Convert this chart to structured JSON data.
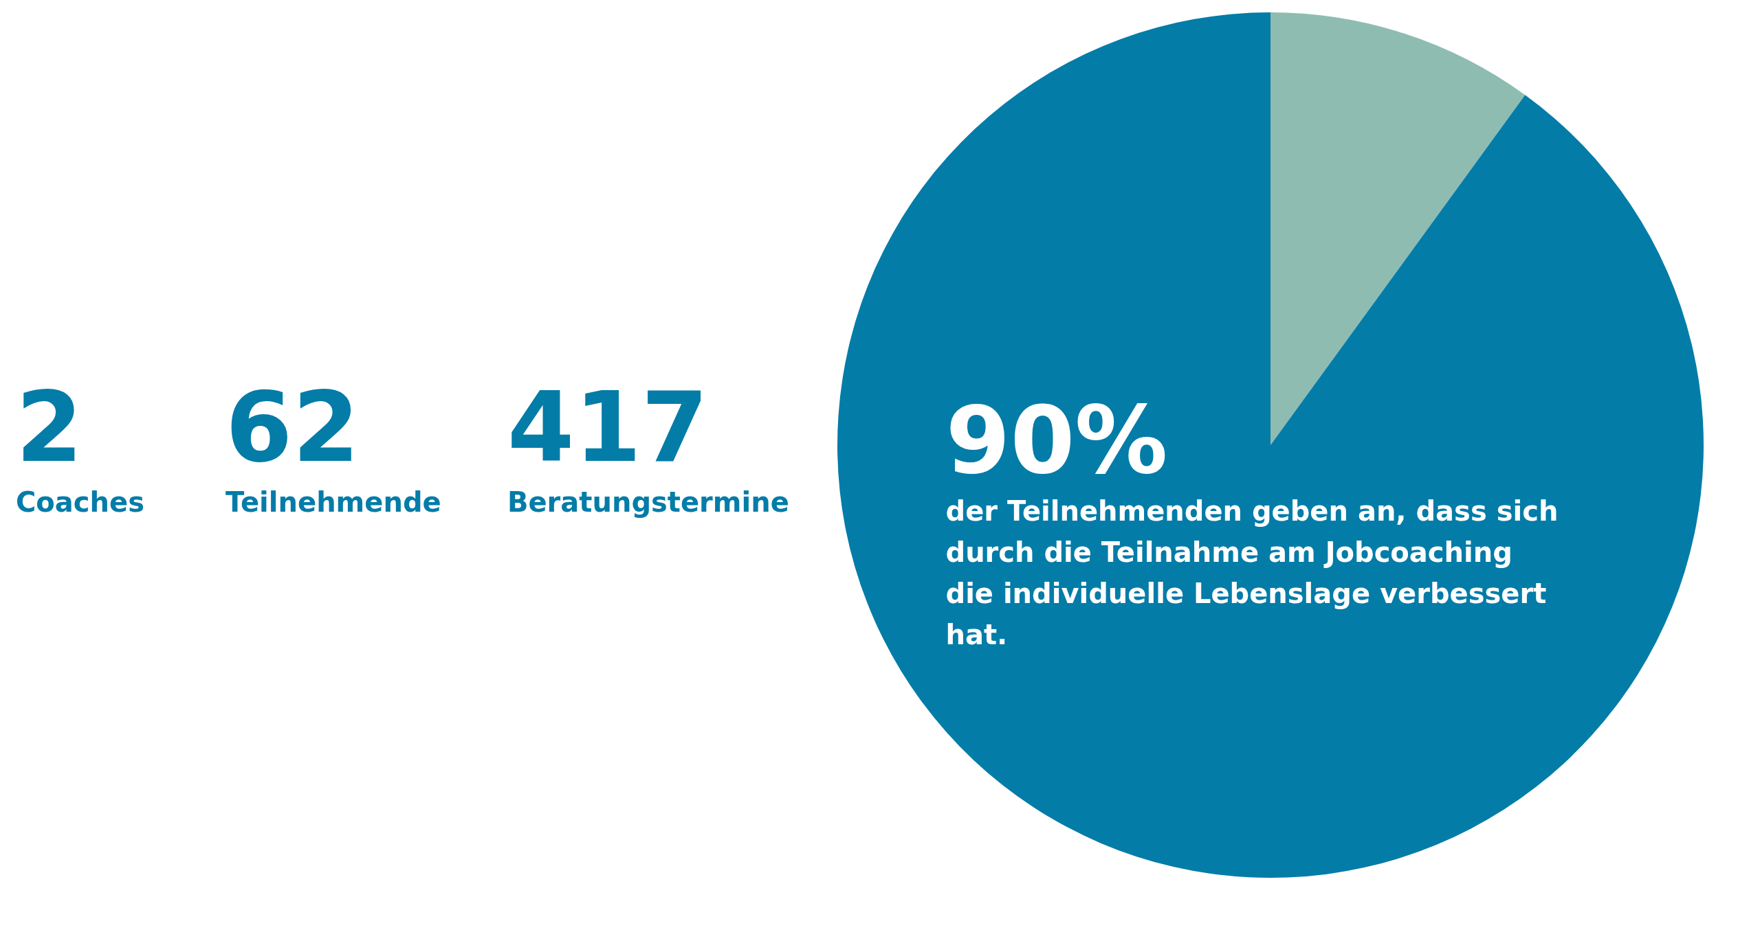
{
  "chart_data": [
    {
      "type": "other",
      "categories": [
        "Coaches",
        "Teilnehmende",
        "Beratungstermine"
      ],
      "value_labels": [
        "2",
        "62",
        "417"
      ],
      "color": "#037ca8"
    },
    {
      "type": "pie",
      "categories": [
        null,
        null
      ],
      "values": [
        10,
        90
      ],
      "colors": [
        "#8fbcb1",
        "#037ca8"
      ],
      "value_labels": [
        null,
        "90%"
      ],
      "annotations": [
        "der Teilnehmenden geben an, dass sich durch die Teilnahme am Jobcoaching die individuelle Lebenslage verbessert hat."
      ],
      "legend": false
    }
  ]
}
